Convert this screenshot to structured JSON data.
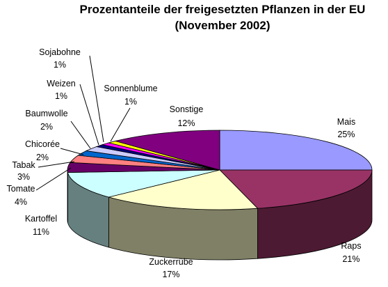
{
  "chart_data": {
    "type": "pie",
    "title_line1": "Prozentanteile der freigesetzten Pflanzen in der EU",
    "title_line2": "(November 2002)",
    "slices": [
      {
        "name": "Mais",
        "pct_label": "25%",
        "value": 25,
        "color": "#9999ff"
      },
      {
        "name": "Raps",
        "pct_label": "21%",
        "value": 21,
        "color": "#993366"
      },
      {
        "name": "Zuckerrübe",
        "pct_label": "17%",
        "value": 17,
        "color": "#ffffcc"
      },
      {
        "name": "Kartoffel",
        "pct_label": "11%",
        "value": 11,
        "color": "#ccffff"
      },
      {
        "name": "Tomate",
        "pct_label": "4%",
        "value": 4,
        "color": "#660066"
      },
      {
        "name": "Tabak",
        "pct_label": "3%",
        "value": 3,
        "color": "#ff8080"
      },
      {
        "name": "Chicorée",
        "pct_label": "2%",
        "value": 2,
        "color": "#0066cc"
      },
      {
        "name": "Baumwolle",
        "pct_label": "2%",
        "value": 2,
        "color": "#ccccff"
      },
      {
        "name": "Weizen",
        "pct_label": "1%",
        "value": 1,
        "color": "#000080"
      },
      {
        "name": "Sojabohne",
        "pct_label": "1%",
        "value": 1,
        "color": "#ff00ff"
      },
      {
        "name": "Sonnenblume",
        "pct_label": "1%",
        "value": 1,
        "color": "#ffff00"
      },
      {
        "name": "Sonstige",
        "pct_label": "12%",
        "value": 12,
        "color": "#800080"
      }
    ]
  }
}
